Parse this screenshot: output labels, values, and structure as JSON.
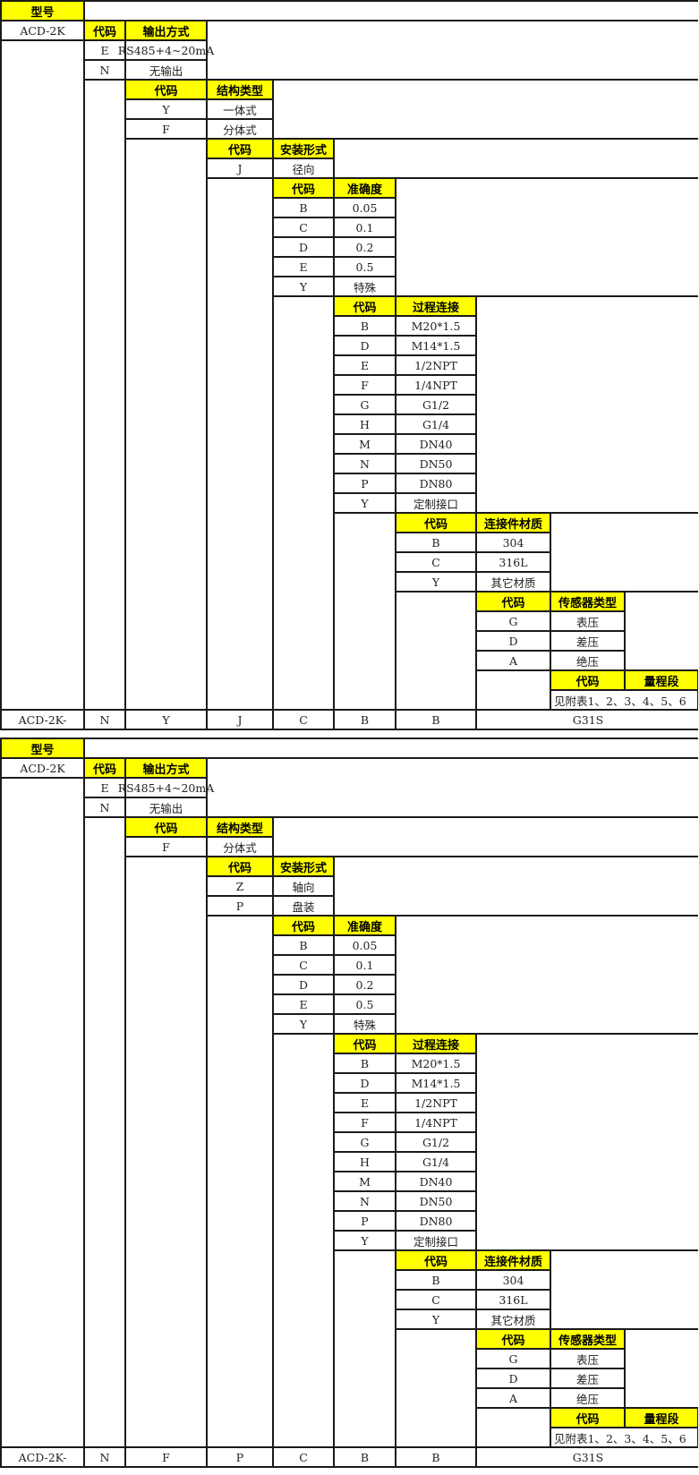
{
  "colors": {
    "header": "#ffff00",
    "border": "#1a1a1a"
  },
  "tables": [
    {
      "model_label": "型号",
      "model": "ACD-2K",
      "sections": [
        {
          "code_label": "代码",
          "name_label": "输出方式",
          "options": [
            {
              "code": "E",
              "name": "RS485+4~20mA"
            },
            {
              "code": "N",
              "name": "无输出"
            }
          ]
        },
        {
          "code_label": "代码",
          "name_label": "结构类型",
          "options": [
            {
              "code": "Y",
              "name": "一体式"
            },
            {
              "code": "F",
              "name": "分体式"
            }
          ]
        },
        {
          "code_label": "代码",
          "name_label": "安装形式",
          "options": [
            {
              "code": "J",
              "name": "径向"
            }
          ]
        },
        {
          "code_label": "代码",
          "name_label": "准确度",
          "options": [
            {
              "code": "B",
              "name": "0.05"
            },
            {
              "code": "C",
              "name": "0.1"
            },
            {
              "code": "D",
              "name": "0.2"
            },
            {
              "code": "E",
              "name": "0.5"
            },
            {
              "code": "Y",
              "name": "特殊"
            }
          ]
        },
        {
          "code_label": "代码",
          "name_label": "过程连接",
          "options": [
            {
              "code": "B",
              "name": "M20*1.5"
            },
            {
              "code": "D",
              "name": "M14*1.5"
            },
            {
              "code": "E",
              "name": "1/2NPT"
            },
            {
              "code": "F",
              "name": "1/4NPT"
            },
            {
              "code": "G",
              "name": "G1/2"
            },
            {
              "code": "H",
              "name": "G1/4"
            },
            {
              "code": "M",
              "name": "DN40"
            },
            {
              "code": "N",
              "name": "DN50"
            },
            {
              "code": "P",
              "name": "DN80"
            },
            {
              "code": "Y",
              "name": "定制接口"
            }
          ]
        },
        {
          "code_label": "代码",
          "name_label": "连接件材质",
          "options": [
            {
              "code": "B",
              "name": "304"
            },
            {
              "code": "C",
              "name": "316L"
            },
            {
              "code": "Y",
              "name": "其它材质"
            }
          ]
        },
        {
          "code_label": "代码",
          "name_label": "传感器类型",
          "options": [
            {
              "code": "G",
              "name": "表压"
            },
            {
              "code": "D",
              "name": "差压"
            },
            {
              "code": "A",
              "name": "绝压"
            }
          ]
        }
      ],
      "range": {
        "code_label": "代码",
        "name_label": "量程段",
        "text": "见附表1、2、3、4、5、6"
      },
      "result": [
        "ACD-2K-",
        "N",
        "Y",
        "J",
        "C",
        "B",
        "B",
        "G31S"
      ]
    },
    {
      "model_label": "型号",
      "model": "ACD-2K",
      "sections": [
        {
          "code_label": "代码",
          "name_label": "输出方式",
          "options": [
            {
              "code": "E",
              "name": "RS485+4~20mA"
            },
            {
              "code": "N",
              "name": "无输出"
            }
          ]
        },
        {
          "code_label": "代码",
          "name_label": "结构类型",
          "options": [
            {
              "code": "F",
              "name": "分体式"
            }
          ]
        },
        {
          "code_label": "代码",
          "name_label": "安装形式",
          "options": [
            {
              "code": "Z",
              "name": "轴向"
            },
            {
              "code": "P",
              "name": "盘装"
            }
          ]
        },
        {
          "code_label": "代码",
          "name_label": "准确度",
          "options": [
            {
              "code": "B",
              "name": "0.05"
            },
            {
              "code": "C",
              "name": "0.1"
            },
            {
              "code": "D",
              "name": "0.2"
            },
            {
              "code": "E",
              "name": "0.5"
            },
            {
              "code": "Y",
              "name": "特殊"
            }
          ]
        },
        {
          "code_label": "代码",
          "name_label": "过程连接",
          "options": [
            {
              "code": "B",
              "name": "M20*1.5"
            },
            {
              "code": "D",
              "name": "M14*1.5"
            },
            {
              "code": "E",
              "name": "1/2NPT"
            },
            {
              "code": "F",
              "name": "1/4NPT"
            },
            {
              "code": "G",
              "name": "G1/2"
            },
            {
              "code": "H",
              "name": "G1/4"
            },
            {
              "code": "M",
              "name": "DN40"
            },
            {
              "code": "N",
              "name": "DN50"
            },
            {
              "code": "P",
              "name": "DN80"
            },
            {
              "code": "Y",
              "name": "定制接口"
            }
          ]
        },
        {
          "code_label": "代码",
          "name_label": "连接件材质",
          "options": [
            {
              "code": "B",
              "name": "304"
            },
            {
              "code": "C",
              "name": "316L"
            },
            {
              "code": "Y",
              "name": "其它材质"
            }
          ]
        },
        {
          "code_label": "代码",
          "name_label": "传感器类型",
          "options": [
            {
              "code": "G",
              "name": "表压"
            },
            {
              "code": "D",
              "name": "差压"
            },
            {
              "code": "A",
              "name": "绝压"
            }
          ]
        }
      ],
      "range": {
        "code_label": "代码",
        "name_label": "量程段",
        "text": "见附表1、2、3、4、5、6"
      },
      "result": [
        "ACD-2K-",
        "N",
        "F",
        "P",
        "C",
        "B",
        "B",
        "G31S"
      ]
    }
  ]
}
